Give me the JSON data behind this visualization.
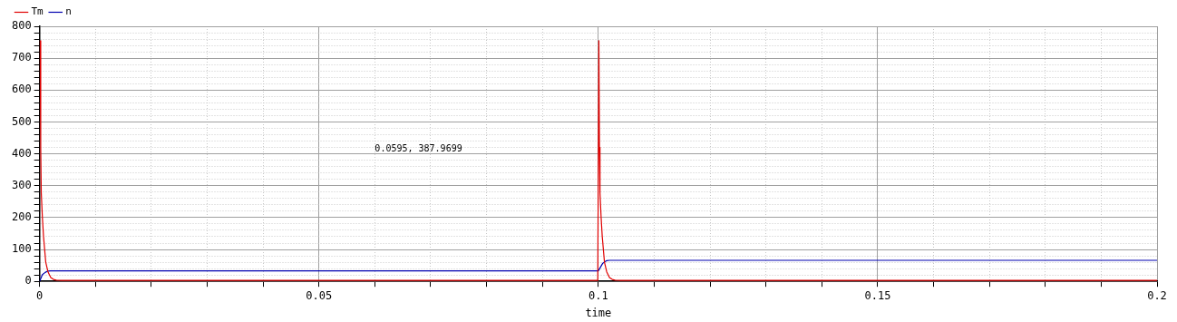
{
  "chart_data": {
    "type": "line",
    "xlabel": "time",
    "xlim": [
      0,
      0.2
    ],
    "xticks": [
      0,
      {
        "value": 0.01,
        "label": null
      },
      {
        "value": 0.02,
        "label": null
      },
      {
        "value": 0.03,
        "label": null
      },
      {
        "value": 0.04,
        "label": null
      },
      0.05,
      {
        "value": 0.06,
        "label": null
      },
      {
        "value": 0.07,
        "label": null
      },
      {
        "value": 0.08,
        "label": null
      },
      {
        "value": 0.09,
        "label": null
      },
      0.1,
      {
        "value": 0.11,
        "label": null
      },
      {
        "value": 0.12,
        "label": null
      },
      {
        "value": 0.13,
        "label": null
      },
      {
        "value": 0.14,
        "label": null
      },
      0.15,
      {
        "value": 0.16,
        "label": null
      },
      {
        "value": 0.17,
        "label": null
      },
      {
        "value": 0.18,
        "label": null
      },
      {
        "value": 0.19,
        "label": null
      },
      0.2
    ],
    "ylim": [
      0,
      800
    ],
    "yticks": [
      0,
      {
        "value": 20,
        "label": null
      },
      {
        "value": 40,
        "label": null
      },
      {
        "value": 60,
        "label": null
      },
      {
        "value": 80,
        "label": null
      },
      100,
      {
        "value": 120,
        "label": null
      },
      {
        "value": 140,
        "label": null
      },
      {
        "value": 160,
        "label": null
      },
      {
        "value": 180,
        "label": null
      },
      200,
      {
        "value": 220,
        "label": null
      },
      {
        "value": 240,
        "label": null
      },
      {
        "value": 260,
        "label": null
      },
      {
        "value": 280,
        "label": null
      },
      300,
      {
        "value": 320,
        "label": null
      },
      {
        "value": 340,
        "label": null
      },
      {
        "value": 360,
        "label": null
      },
      {
        "value": 380,
        "label": null
      },
      400,
      {
        "value": 420,
        "label": null
      },
      {
        "value": 440,
        "label": null
      },
      {
        "value": 460,
        "label": null
      },
      {
        "value": 480,
        "label": null
      },
      500,
      {
        "value": 520,
        "label": null
      },
      {
        "value": 540,
        "label": null
      },
      {
        "value": 560,
        "label": null
      },
      {
        "value": 580,
        "label": null
      },
      600,
      {
        "value": 620,
        "label": null
      },
      {
        "value": 640,
        "label": null
      },
      {
        "value": 660,
        "label": null
      },
      {
        "value": 680,
        "label": null
      },
      700,
      {
        "value": 720,
        "label": null
      },
      {
        "value": 740,
        "label": null
      },
      {
        "value": 760,
        "label": null
      },
      {
        "value": 780,
        "label": null
      },
      800
    ],
    "grid": true,
    "legend": "top left",
    "marker": "none",
    "line_style": "solid",
    "annotations": [
      "0.0595, 387.9699"
    ],
    "series": [
      {
        "name": "Tm",
        "color": "#e00000",
        "x": [
          0.0001,
          0.0002,
          0.0003,
          0.0005,
          0.0007,
          0.0011,
          0.0015,
          0.002,
          0.0025,
          0.003,
          0.004,
          0.0999,
          0.1001,
          0.1002,
          0.1003,
          0.1005,
          0.1007,
          0.1011,
          0.1015,
          0.102,
          0.1025,
          0.103,
          0.104,
          0.2
        ],
        "values": [
          755,
          420,
          277,
          200,
          141,
          60,
          30,
          12,
          6,
          4,
          3,
          3,
          755,
          420,
          277,
          200,
          141,
          60,
          30,
          12,
          6,
          4,
          3,
          3
        ]
      },
      {
        "name": "n",
        "color": "#0000b0",
        "x": [
          0,
          0.0005,
          0.001,
          0.0014,
          0.002,
          0.1,
          0.1004,
          0.1008,
          0.1015,
          0.102,
          0.2
        ],
        "values": [
          0,
          21,
          28,
          32,
          33,
          33,
          45,
          57,
          65,
          66,
          66
        ]
      }
    ]
  }
}
